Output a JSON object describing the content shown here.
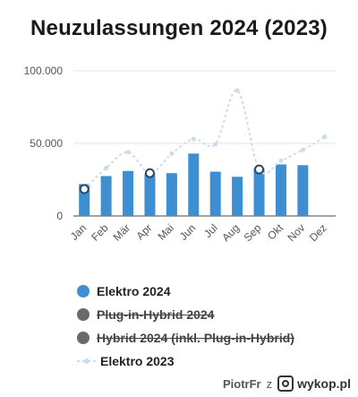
{
  "chart_data": {
    "type": "bar",
    "title": "Neuzulassungen 2024 (2023)",
    "categories": [
      "Jan",
      "Feb",
      "Mär",
      "Apr",
      "Mai",
      "Jun",
      "Jul",
      "Aug",
      "Sep",
      "Okt",
      "Nov",
      "Dez"
    ],
    "yticks": [
      "0",
      "50.000",
      "100.000"
    ],
    "ylim": [
      0,
      100000
    ],
    "grid": true,
    "series": [
      {
        "name": "Elektro 2024",
        "type": "bar",
        "color": "#3d8fd1",
        "values": [
          22000,
          27500,
          31000,
          29000,
          29500,
          43000,
          30500,
          27000,
          33000,
          35500,
          35000,
          null
        ]
      },
      {
        "name": "Plug-in-Hybrid 2024",
        "type": "bar",
        "hidden": true,
        "color": "#6a6a6a"
      },
      {
        "name": "Hybrid 2024 (inkl. Plug-in-Hybrid)",
        "type": "bar",
        "hidden": true,
        "color": "#6a6a6a"
      },
      {
        "name": "Elektro 2023",
        "type": "line",
        "style": "dashed-spline",
        "color": "#c9dcee",
        "values": [
          18500,
          33000,
          44000,
          29500,
          43000,
          53000,
          49500,
          86500,
          32000,
          38000,
          45500,
          54500
        ]
      }
    ],
    "highlighted_points": [
      {
        "series": "Elektro 2023",
        "category": "Jan"
      },
      {
        "series": "Elektro 2023",
        "category": "Apr"
      },
      {
        "series": "Elektro 2023",
        "category": "Sep"
      }
    ],
    "legend_position": "bottom-left"
  },
  "watermark": {
    "user": "PiotrFr",
    "sep": "z",
    "site": "wykop.pl"
  }
}
